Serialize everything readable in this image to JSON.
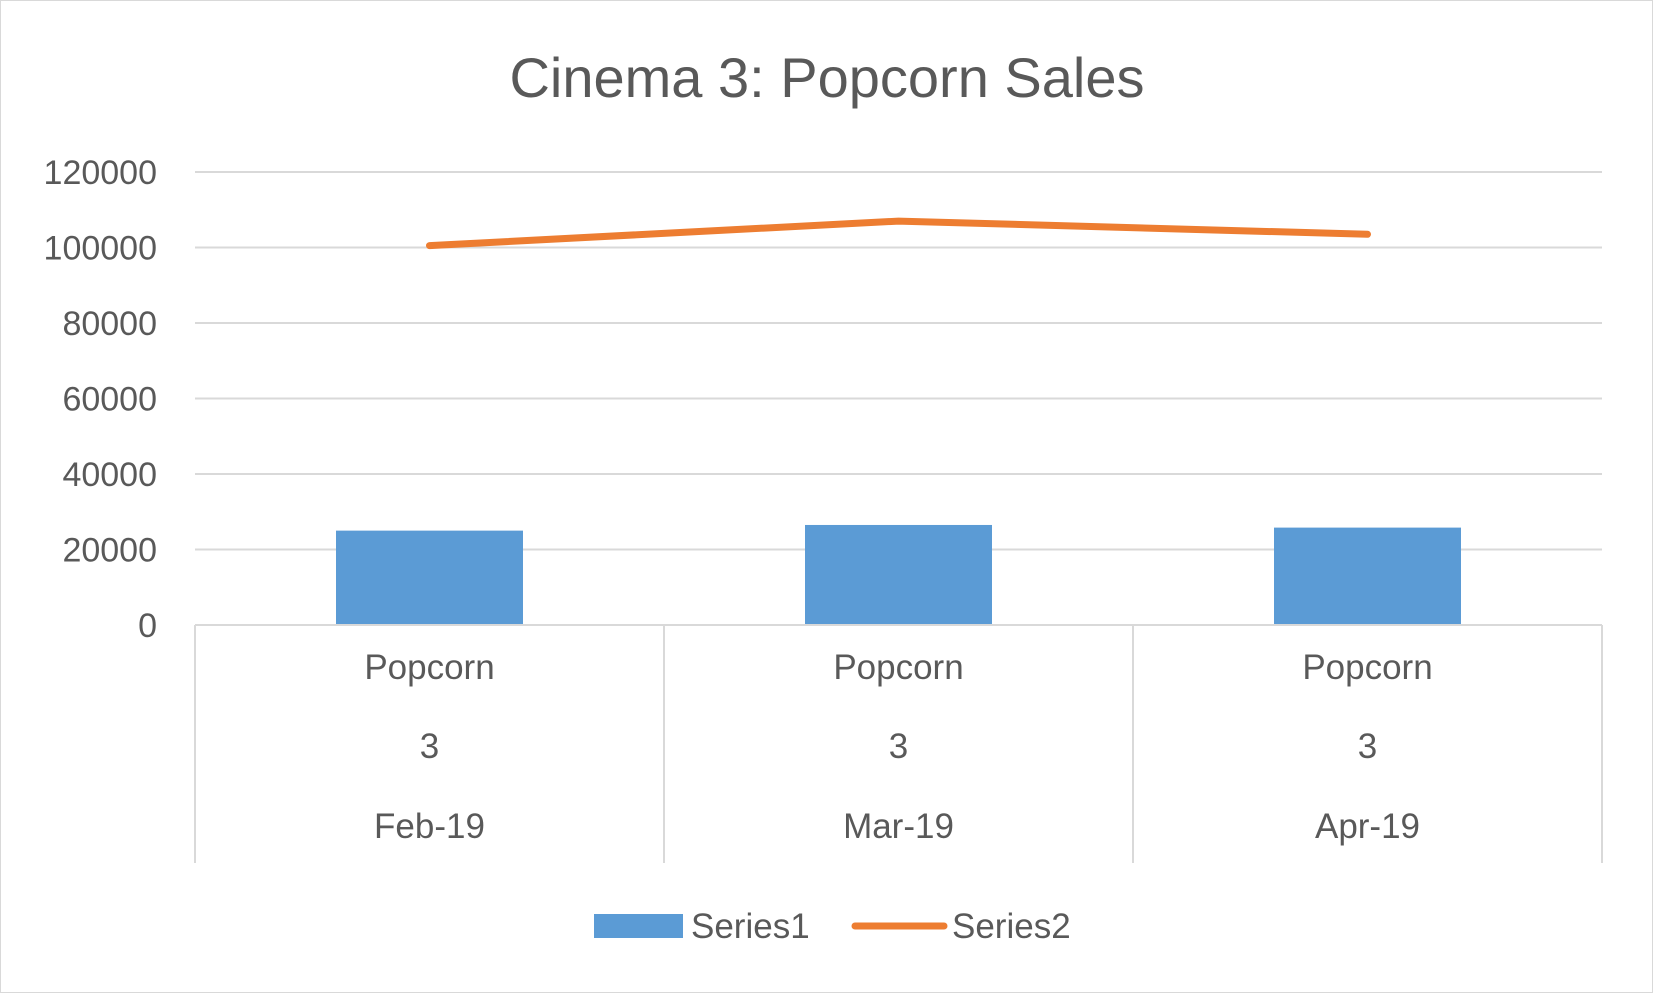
{
  "chart_data": {
    "type": "bar",
    "title": "Cinema 3: Popcorn Sales",
    "xlabel": "",
    "ylabel": "",
    "ylim": [
      0,
      120000
    ],
    "yticks": [
      0,
      20000,
      40000,
      60000,
      80000,
      100000,
      120000
    ],
    "grid": true,
    "legend_position": "bottom",
    "categories": [
      {
        "levels": [
          "Popcorn",
          "3",
          "Feb-19"
        ]
      },
      {
        "levels": [
          "Popcorn",
          "3",
          "Mar-19"
        ]
      },
      {
        "levels": [
          "Popcorn",
          "3",
          "Apr-19"
        ]
      }
    ],
    "series": [
      {
        "name": "Series1",
        "type": "bar",
        "color": "#5b9bd5",
        "values": [
          25000,
          26500,
          25800
        ]
      },
      {
        "name": "Series2",
        "type": "line",
        "color": "#ed7d31",
        "values": [
          100500,
          107000,
          103500
        ]
      }
    ]
  }
}
